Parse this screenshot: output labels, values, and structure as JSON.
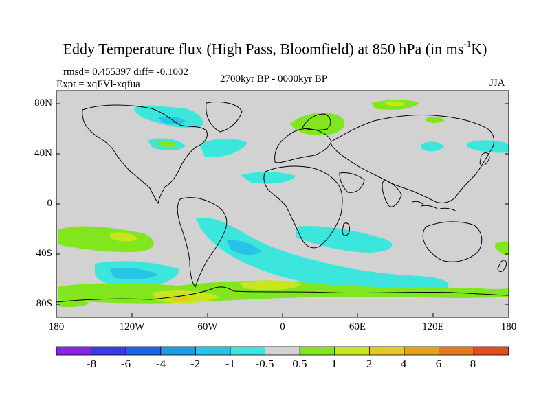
{
  "title": {
    "prefix": "Eddy Temperature flux (High Pass, Bloomfield) at 850 hPa (in ms",
    "sup": "-1",
    "suffix": "K)"
  },
  "stats": "rmsd= 0.455397 diff= -0.1002",
  "experiment": "Expt = xqFVl-xqfua",
  "period": "2700kyr BP - 0000kyr BP",
  "season": "JJA",
  "lat_labels": [
    "80N",
    "40N",
    "0",
    "40S",
    "80S"
  ],
  "lon_labels": [
    "180",
    "120W",
    "60W",
    "0",
    "60E",
    "120E",
    "180"
  ],
  "colorbar": {
    "colors": [
      "#8c20e6",
      "#3a3ae6",
      "#1c64e6",
      "#1c9be6",
      "#28c3e6",
      "#3ce6dc",
      "#d2d2d2",
      "#82e61e",
      "#c8e61e",
      "#e6c81e",
      "#e6a01e",
      "#e6781e",
      "#e64b1e"
    ],
    "labels": [
      "-8",
      "-6",
      "-4",
      "-2",
      "-1",
      "-0.5",
      "0.5",
      "1",
      "2",
      "4",
      "6",
      "8"
    ]
  },
  "map": {
    "background": "#d2d2d2",
    "coastline": "#000000"
  }
}
